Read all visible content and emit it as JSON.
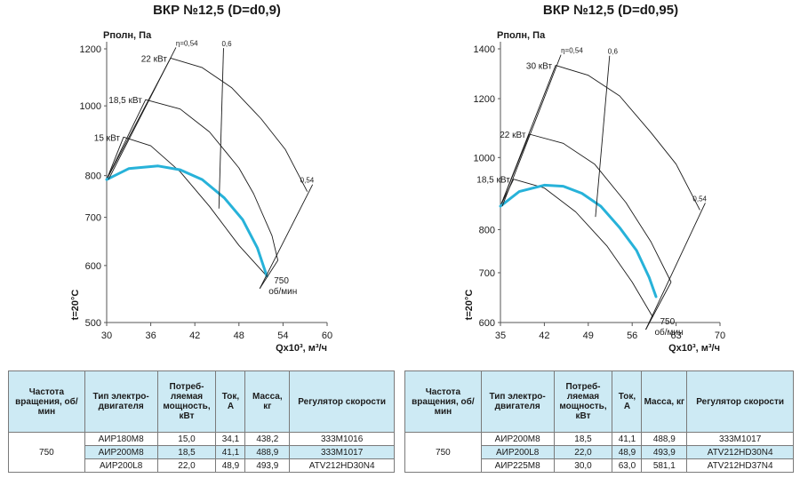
{
  "chart_data": [
    {
      "type": "line",
      "title": "ВКР №12,5 (D=d0,9)",
      "ylabel": "Pполн, Па",
      "xlabel": "Qx10³, м³/ч",
      "temp_label": "t=20°C",
      "x_ticks": [
        "30",
        "36",
        "42",
        "48",
        "54",
        "60"
      ],
      "y_ticks": [
        "500",
        "600",
        "700",
        "800",
        "1000",
        "1200"
      ],
      "xlim": [
        30,
        60
      ],
      "ylim": [
        500,
        1200
      ],
      "y_scale": "log",
      "series": [
        {
          "name": "15 кВт",
          "x": [
            30,
            32.3,
            36,
            40,
            44,
            48,
            51.8
          ],
          "y": [
            790,
            905,
            880,
            810,
            725,
            640,
            580
          ]
        },
        {
          "name": "18,5 кВт",
          "x": [
            30,
            35.3,
            40,
            44,
            48,
            50,
            52.5,
            53.3
          ],
          "y": [
            790,
            1020,
            990,
            920,
            820,
            755,
            660,
            610
          ]
        },
        {
          "name": "22 кВт",
          "x": [
            30,
            38.7,
            43,
            47,
            51,
            54.3,
            57.3
          ],
          "y": [
            790,
            1165,
            1130,
            1060,
            960,
            870,
            760
          ]
        },
        {
          "name": "",
          "x": [
            30,
            33,
            37,
            40,
            43,
            46,
            48.5,
            50.5,
            51.8
          ],
          "y": [
            790,
            818,
            825,
            815,
            790,
            745,
            695,
            635,
            580
          ]
        }
      ],
      "annotations": [
        "η=0,54",
        "0,6",
        "0,54",
        "750",
        "об/мин"
      ],
      "colors": {
        "curve": "#27b2d9",
        "lines": "#1a1a1a"
      }
    },
    {
      "type": "line",
      "title": "ВКР №12,5 (D=d0,95)",
      "ylabel": "Pполн, Па",
      "xlabel": "Qx10³, м³/ч",
      "temp_label": "t=20°C",
      "x_ticks": [
        "35",
        "42",
        "49",
        "56",
        "63",
        "70"
      ],
      "y_ticks": [
        "600",
        "700",
        "800",
        "1000",
        "1200",
        "1400"
      ],
      "xlim": [
        35,
        70
      ],
      "ylim": [
        600,
        1400
      ],
      "y_scale": "log",
      "series": [
        {
          "name": "18,5 кВт",
          "x": [
            35,
            37.1,
            42,
            47,
            52,
            56,
            59.3
          ],
          "y": [
            860,
            935,
            910,
            845,
            760,
            680,
            610
          ]
        },
        {
          "name": "22 кВт",
          "x": [
            35,
            39.6,
            45,
            50,
            55,
            59,
            62.2
          ],
          "y": [
            860,
            1075,
            1045,
            980,
            870,
            770,
            680
          ]
        },
        {
          "name": "30 кВт",
          "x": [
            35,
            43.8,
            49,
            54,
            59,
            63,
            66.8
          ],
          "y": [
            860,
            1330,
            1290,
            1210,
            1080,
            980,
            850
          ]
        },
        {
          "name": "",
          "x": [
            35,
            38,
            42,
            45,
            48,
            51,
            54,
            56.7,
            58.7,
            59.8
          ],
          "y": [
            860,
            900,
            918,
            915,
            895,
            860,
            805,
            750,
            690,
            650
          ]
        }
      ],
      "annotations": [
        "η=0,54",
        "0,6",
        "0,54",
        "750",
        "об/мин"
      ],
      "colors": {
        "curve": "#27b2d9",
        "lines": "#1a1a1a"
      }
    }
  ],
  "tables": [
    {
      "headers": [
        "Частота вращения, об/мин",
        "Тип электро-двигателя",
        "Потреб-ляемая мощность, кВт",
        "Ток, А",
        "Масса, кг",
        "Регулятор скорости"
      ],
      "speed": "750",
      "rows": [
        [
          "АИР180М8",
          "15,0",
          "34,1",
          "438,2",
          "333М1016"
        ],
        [
          "АИР200М8",
          "18,5",
          "41,1",
          "488,9",
          "333М1017"
        ],
        [
          "АИР200L8",
          "22,0",
          "48,9",
          "493,9",
          "ATV212HD30N4"
        ]
      ]
    },
    {
      "headers": [
        "Частота вращения, об/мин",
        "Тип электро-двигателя",
        "Потреб-ляемая мощность, кВт",
        "Ток, А",
        "Масса, кг",
        "Регулятор скорости"
      ],
      "speed": "750",
      "rows": [
        [
          "АИР200М8",
          "18,5",
          "41,1",
          "488,9",
          "333М1017"
        ],
        [
          "АИР200L8",
          "22,0",
          "48,9",
          "493,9",
          "ATV212HD30N4"
        ],
        [
          "АИР225М8",
          "30,0",
          "63,0",
          "581,1",
          "ATV212HD37N4"
        ]
      ]
    }
  ]
}
